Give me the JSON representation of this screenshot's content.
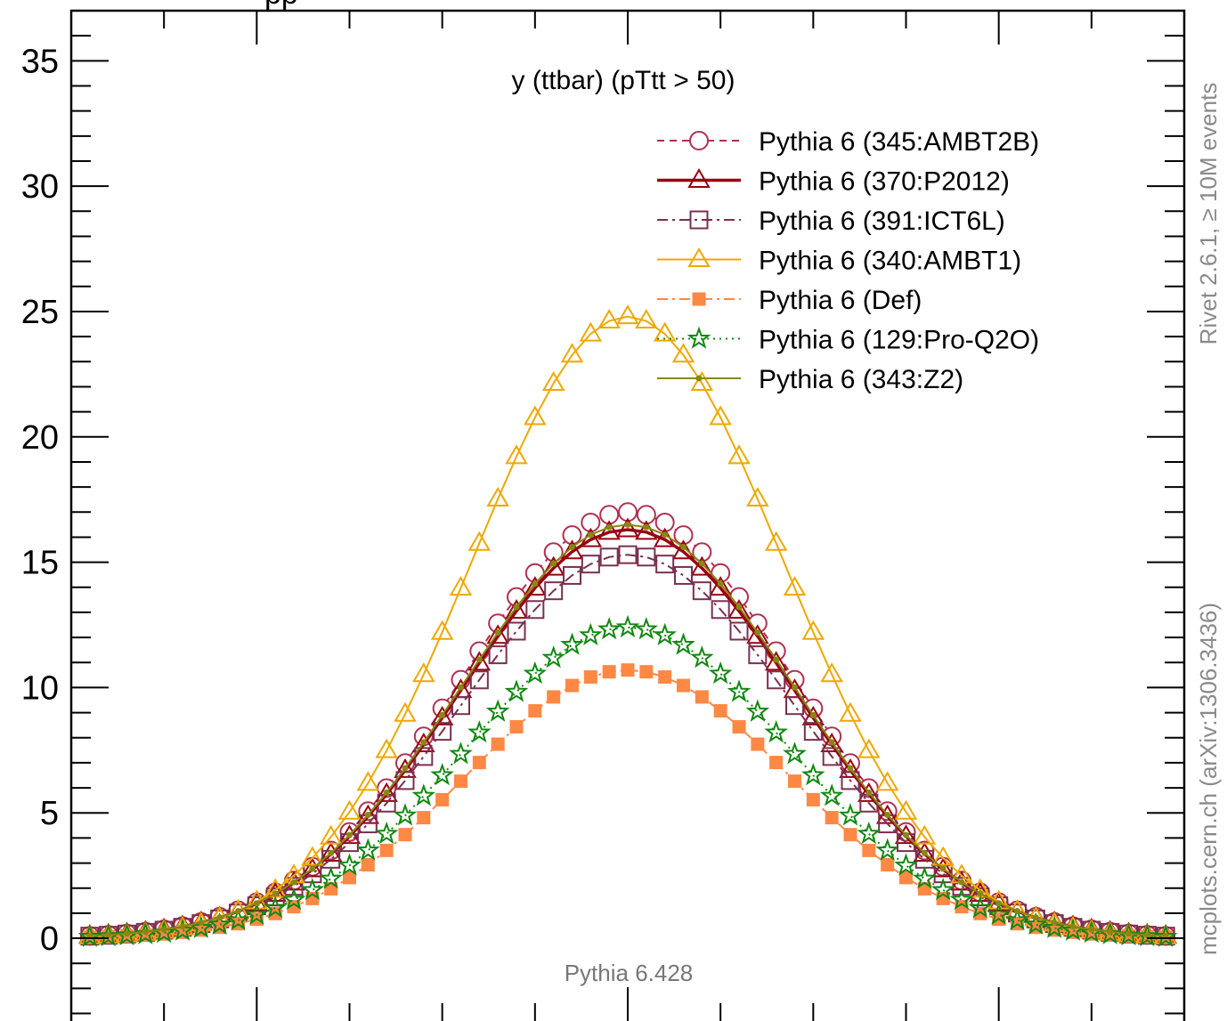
{
  "chart_data": {
    "type": "line",
    "title": "y (ttbar) (pTtt > 50)",
    "top_title_fragment": "pp",
    "xlabel": "",
    "ylabel": "",
    "xlim": [
      -3.0,
      3.0
    ],
    "ylim": [
      -3.3,
      37.0
    ],
    "y_ticks": [
      0,
      5,
      10,
      15,
      20,
      25,
      30,
      35
    ],
    "y_tick_labels": [
      "0",
      "5",
      "10",
      "15",
      "20",
      "25",
      "30",
      "35"
    ],
    "x_major_ticks": [
      -2,
      0,
      2
    ],
    "x_minor_step": 0.5,
    "y_minor_step": 1,
    "grid": false,
    "legend_position": "top-right",
    "annotation": "Pythia 6.428",
    "side_labels": {
      "right_top": "Rivet 2.6.1,  ≥ 10M events",
      "right_bottom": "mcplots.cern.ch (arXiv:1306.3436)"
    },
    "series": [
      {
        "name": "Pythia 6 (345:AMBT2B)",
        "color": "#b03050",
        "marker": "circle-open",
        "line": "dashed",
        "peak": 17.0,
        "width": 0.9
      },
      {
        "name": "Pythia 6 (370:P2012)",
        "color": "#990011",
        "marker": "triangle-open",
        "line": "solid-thick",
        "peak": 16.3,
        "width": 0.9
      },
      {
        "name": "Pythia 6 (391:ICT6L)",
        "color": "#7a3050",
        "marker": "square-open",
        "line": "dashdot",
        "peak": 15.3,
        "width": 0.9
      },
      {
        "name": "Pythia 6 (340:AMBT1)",
        "color": "#eea800",
        "marker": "triangle-open",
        "line": "solid",
        "peak": 24.8,
        "width": 0.84
      },
      {
        "name": "Pythia 6 (Def)",
        "color": "#ff8844",
        "marker": "square-filled",
        "line": "dashdot",
        "peak": 10.7,
        "width": 0.87
      },
      {
        "name": "Pythia 6 (129:Pro-Q2O)",
        "color": "#118811",
        "marker": "star-open",
        "line": "dotted",
        "peak": 12.4,
        "width": 0.88
      },
      {
        "name": "Pythia 6 (343:Z2)",
        "color": "#888811",
        "marker": "dot",
        "line": "solid",
        "peak": 16.5,
        "width": 0.9
      }
    ]
  }
}
